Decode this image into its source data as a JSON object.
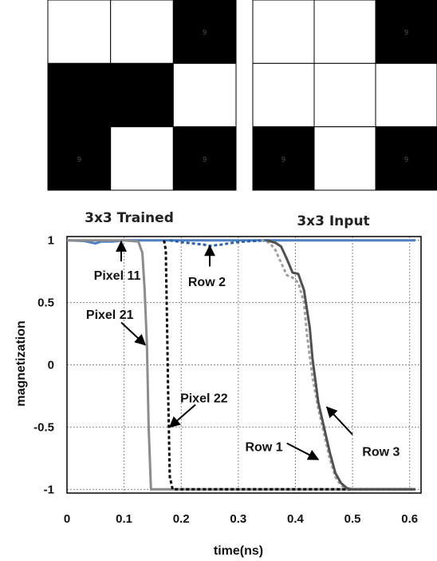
{
  "grids": [
    {
      "title": "3x3 Trained",
      "cells": [
        [
          "white",
          "white",
          "black"
        ],
        [
          "black",
          "black",
          "white"
        ],
        [
          "black",
          "white",
          "black"
        ]
      ],
      "cell_numbers": [
        [
          "",
          "",
          "9"
        ],
        [
          "",
          "",
          ""
        ],
        [
          "9",
          "",
          "9"
        ]
      ]
    },
    {
      "title": "3x3 Input",
      "cells": [
        [
          "white",
          "white",
          "black"
        ],
        [
          "white",
          "white",
          "white"
        ],
        [
          "black",
          "white",
          "black"
        ]
      ],
      "cell_numbers": [
        [
          "",
          "",
          "9"
        ],
        [
          "",
          "",
          ""
        ],
        [
          "9",
          "",
          "9"
        ]
      ]
    }
  ],
  "chart_data": {
    "type": "line",
    "xlabel": "time(ns)",
    "ylabel": "magnetization",
    "xlim": [
      0,
      0.62
    ],
    "ylim": [
      -1.03,
      1.03
    ],
    "xticks": [
      "0",
      "0.1",
      "0.2",
      "0.3",
      "0.4",
      "0.5",
      "0.6"
    ],
    "xtick_values": [
      0,
      0.1,
      0.2,
      0.3,
      0.4,
      0.5,
      0.6
    ],
    "yticks": [
      "1",
      "0.5",
      "0",
      "-0.5",
      "-1"
    ],
    "ytick_values": [
      1,
      0.5,
      0,
      -0.5,
      -1
    ],
    "grid": true,
    "series": [
      {
        "name": "Pixel 11",
        "color": "#4f7fc0",
        "style": "solid",
        "x": [
          0,
          0.03,
          0.05,
          0.06,
          0.08,
          0.1,
          0.2,
          0.3,
          0.4,
          0.5,
          0.61
        ],
        "y": [
          1,
          0.995,
          0.975,
          0.99,
          0.99,
          1,
          1,
          1,
          1,
          1,
          1
        ]
      },
      {
        "name": "Pixel 21",
        "color": "#8c8c8c",
        "style": "solid",
        "x": [
          0,
          0.1,
          0.125,
          0.132,
          0.136,
          0.14,
          0.143,
          0.147,
          0.2,
          0.4,
          0.61
        ],
        "y": [
          1,
          1,
          0.99,
          0.9,
          0.6,
          0.15,
          -0.5,
          -1,
          -1,
          -1,
          -1
        ]
      },
      {
        "name": "Pixel 22",
        "color": "#000000",
        "style": "dotted",
        "x": [
          0.17,
          0.173,
          0.175,
          0.177,
          0.18,
          0.185,
          0.3,
          0.61
        ],
        "y": [
          1,
          0.92,
          0.4,
          -0.2,
          -0.9,
          -1,
          -1,
          -1
        ]
      },
      {
        "name": "Row 2",
        "color": "#2e62a8",
        "style": "dotted",
        "x": [
          0.18,
          0.2,
          0.22,
          0.24,
          0.25,
          0.27,
          0.29,
          0.31,
          0.33,
          0.35
        ],
        "y": [
          1,
          0.985,
          0.975,
          0.965,
          0.955,
          0.965,
          0.98,
          0.99,
          0.995,
          1
        ]
      },
      {
        "name": "Row 1",
        "color": "#a0a0a0",
        "style": "dotted",
        "x": [
          0.34,
          0.355,
          0.365,
          0.375,
          0.385,
          0.395,
          0.405,
          0.415,
          0.42,
          0.43,
          0.44,
          0.45,
          0.46,
          0.47,
          0.48,
          0.49,
          0.5,
          0.52,
          0.61
        ],
        "y": [
          1,
          0.98,
          0.92,
          0.82,
          0.72,
          0.7,
          0.66,
          0.5,
          0.25,
          -0.1,
          -0.35,
          -0.55,
          -0.75,
          -0.9,
          -0.97,
          -0.99,
          -1,
          -1,
          -1
        ]
      },
      {
        "name": "Row 3",
        "color": "#505050",
        "style": "solid",
        "x": [
          0.35,
          0.365,
          0.375,
          0.385,
          0.395,
          0.405,
          0.415,
          0.425,
          0.43,
          0.44,
          0.45,
          0.46,
          0.47,
          0.48,
          0.49,
          0.5,
          0.52,
          0.61
        ],
        "y": [
          1,
          0.98,
          0.95,
          0.85,
          0.74,
          0.73,
          0.6,
          0.3,
          0.05,
          -0.3,
          -0.5,
          -0.7,
          -0.87,
          -0.95,
          -0.99,
          -1,
          -1,
          -1
        ]
      }
    ],
    "annotations": [
      {
        "label": "Pixel 11",
        "text_x": 0.088,
        "text_y": 0.715,
        "arrow_from": [
          0.095,
          0.83
        ],
        "arrow_to": [
          0.095,
          0.99
        ]
      },
      {
        "label": "Row 2",
        "text_x": 0.245,
        "text_y": 0.665,
        "arrow_from": [
          0.25,
          0.79
        ],
        "arrow_to": [
          0.25,
          0.955
        ]
      },
      {
        "label": "Pixel 21",
        "text_x": 0.075,
        "text_y": 0.4,
        "arrow_from": [
          0.095,
          0.34
        ],
        "arrow_to": [
          0.137,
          0.16
        ]
      },
      {
        "label": "Pixel 22",
        "text_x": 0.24,
        "text_y": -0.27,
        "arrow_from": [
          0.225,
          -0.32
        ],
        "arrow_to": [
          0.18,
          -0.5
        ]
      },
      {
        "label": "Row 1",
        "text_x": 0.345,
        "text_y": -0.66,
        "arrow_from": [
          0.385,
          -0.63
        ],
        "arrow_to": [
          0.44,
          -0.76
        ]
      },
      {
        "label": "Row 3",
        "text_x": 0.55,
        "text_y": -0.7,
        "arrow_from": [
          0.5,
          -0.56
        ],
        "arrow_to": [
          0.455,
          -0.34
        ]
      }
    ]
  }
}
